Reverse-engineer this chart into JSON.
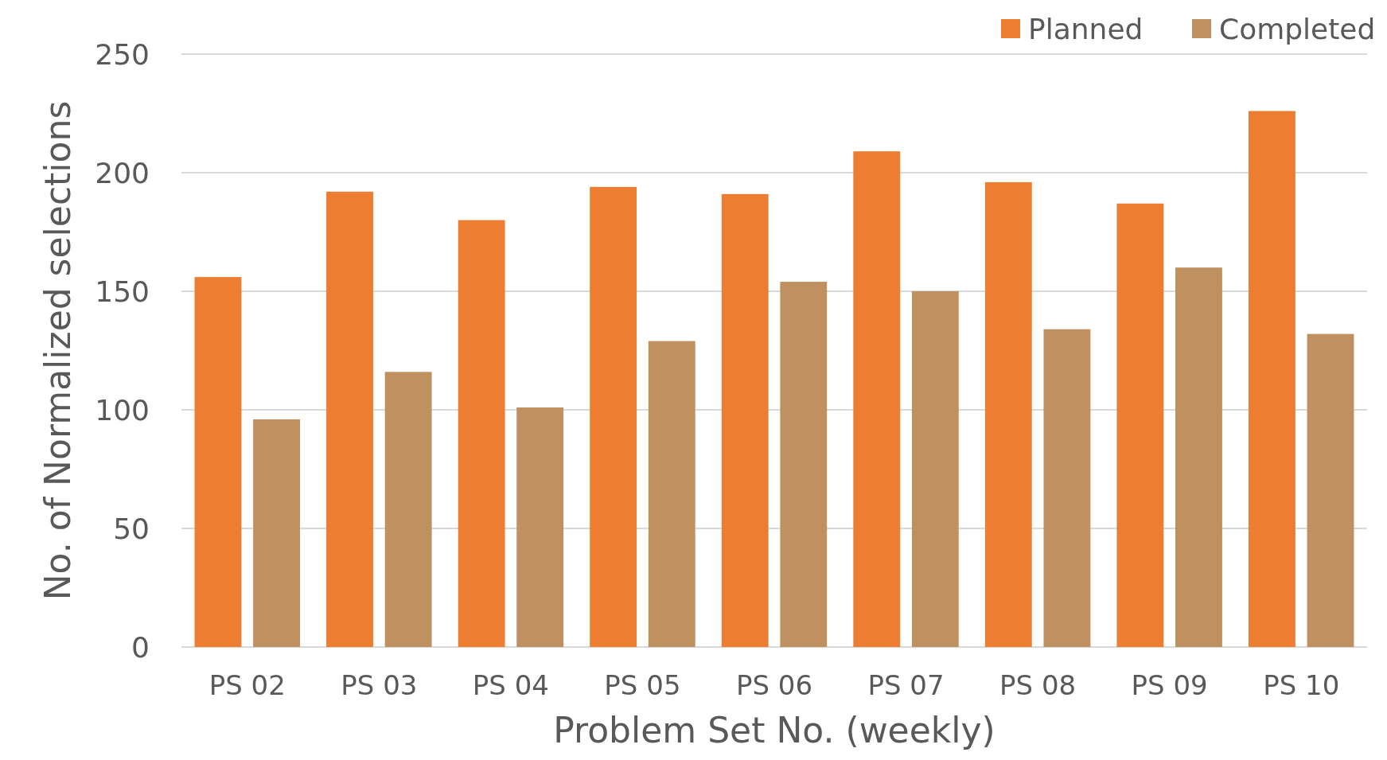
{
  "chart_data": {
    "type": "bar",
    "xlabel": "Problem Set No. (weekly)",
    "ylabel": "No. of Normalized selections",
    "categories": [
      "PS 02",
      "PS 03",
      "PS 04",
      "PS 05",
      "PS 06",
      "PS 07",
      "PS 08",
      "PS 09",
      "PS 10"
    ],
    "series": [
      {
        "name": "Planned",
        "color": "#ed7d31",
        "values": [
          156,
          192,
          180,
          194,
          191,
          209,
          196,
          187,
          226
        ]
      },
      {
        "name": "Completed",
        "color": "#bf9060",
        "values": [
          96,
          116,
          101,
          129,
          154,
          150,
          134,
          160,
          132
        ]
      }
    ],
    "ylim": [
      0,
      250
    ],
    "yticks": [
      0,
      50,
      100,
      150,
      200,
      250
    ],
    "grid": "y",
    "legend": "top right"
  }
}
